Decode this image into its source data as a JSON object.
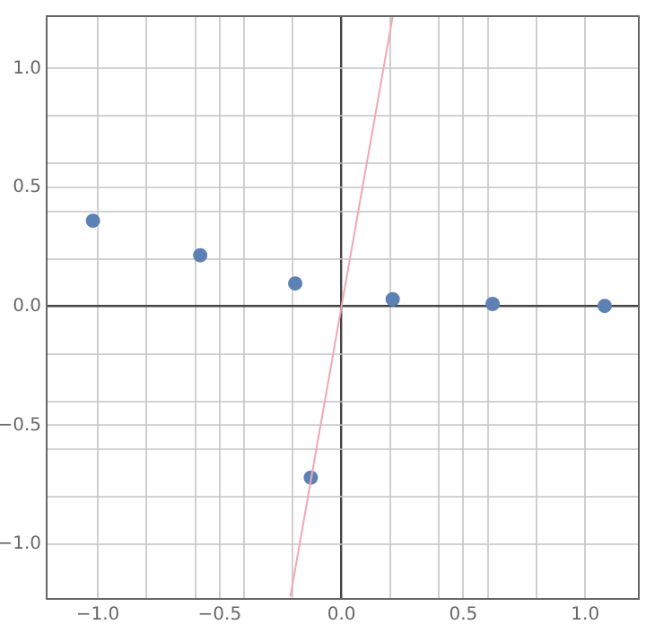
{
  "chart_data": {
    "type": "scatter",
    "grid": true,
    "marker": "circle",
    "xlim": [
      -1.21,
      1.22
    ],
    "ylim": [
      -1.23,
      1.22
    ],
    "xticks": [
      {
        "value": -1,
        "label": "−1.0"
      },
      {
        "value": -0.8,
        "label": null
      },
      {
        "value": -0.6,
        "label": null
      },
      {
        "value": -0.5,
        "label": "−0.5"
      },
      {
        "value": -0.4,
        "label": null
      },
      {
        "value": -0.2,
        "label": null
      },
      {
        "value": 0,
        "label": "0.0"
      },
      {
        "value": 0.2,
        "label": null
      },
      {
        "value": 0.4,
        "label": null
      },
      {
        "value": 0.5,
        "label": "0.5"
      },
      {
        "value": 0.6,
        "label": null
      },
      {
        "value": 0.8,
        "label": null
      },
      {
        "value": 1,
        "label": "1.0"
      }
    ],
    "yticks": [
      {
        "value": -1,
        "label": "−1.0"
      },
      {
        "value": -0.8,
        "label": null
      },
      {
        "value": -0.6,
        "label": null
      },
      {
        "value": -0.5,
        "label": "−0.5"
      },
      {
        "value": -0.4,
        "label": null
      },
      {
        "value": -0.2,
        "label": null
      },
      {
        "value": 0,
        "label": "0.0"
      },
      {
        "value": 0.2,
        "label": null
      },
      {
        "value": 0.4,
        "label": null
      },
      {
        "value": 0.5,
        "label": "0.5"
      },
      {
        "value": 0.6,
        "label": null
      },
      {
        "value": 0.8,
        "label": null
      },
      {
        "value": 1,
        "label": "1.0"
      }
    ],
    "series": [
      {
        "type": "line",
        "color": "#f2a7b3",
        "marker": "none",
        "x": [
          -0.21,
          0.21
        ],
        "values": [
          -1.22,
          1.22
        ]
      },
      {
        "color": "#5e81b5",
        "x": [
          -1.02,
          -0.58,
          -0.19,
          -0.126,
          0.21,
          0.62,
          1.08
        ],
        "values": [
          0.36,
          0.215,
          0.096,
          -0.72,
          0.03,
          0.01,
          0.002
        ]
      }
    ]
  }
}
